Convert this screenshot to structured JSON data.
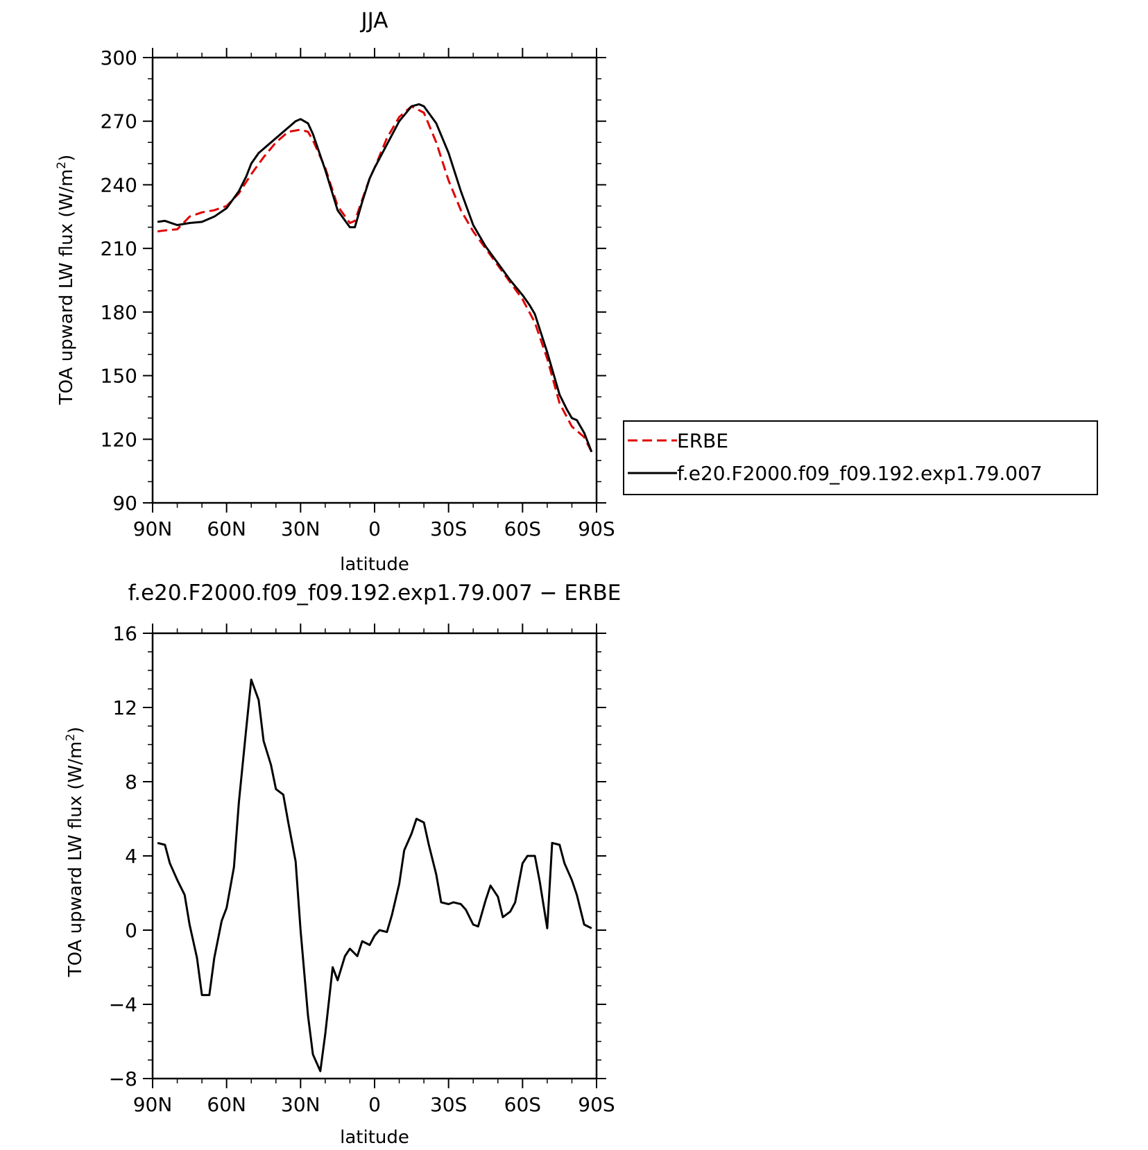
{
  "chart_data": [
    {
      "type": "line",
      "title": "JJA",
      "xlabel": "latitude",
      "ylabel": "TOA upward LW flux (W/m²)",
      "xlim": [
        90,
        -90
      ],
      "ylim": [
        90,
        300
      ],
      "xticks": [
        90,
        60,
        30,
        0,
        -30,
        -60,
        -90
      ],
      "xtick_labels": [
        "90N",
        "60N",
        "30N",
        "0",
        "30S",
        "60S",
        "90S"
      ],
      "yticks": [
        90,
        120,
        150,
        180,
        210,
        240,
        270,
        300
      ],
      "ytick_labels": [
        "90",
        "120",
        "150",
        "180",
        "210",
        "240",
        "270",
        "300"
      ],
      "grid": false,
      "legend": "right",
      "series": [
        {
          "name": "ERBE",
          "color": "#e00000",
          "style": "dashed",
          "x": [
            88,
            85,
            80,
            75,
            70,
            65,
            60,
            55,
            50,
            45,
            40,
            35,
            30,
            27,
            25,
            20,
            15,
            10,
            8,
            5,
            2,
            0,
            -5,
            -10,
            -15,
            -20,
            -25,
            -30,
            -35,
            -40,
            -45,
            -50,
            -55,
            -60,
            -65,
            -70,
            -75,
            -80,
            -85,
            -88
          ],
          "values": [
            218,
            218.5,
            219,
            225,
            227,
            228,
            230,
            236,
            245,
            253,
            260,
            265,
            266,
            265,
            261,
            248,
            230,
            222,
            223,
            233,
            243,
            248,
            262,
            272,
            277,
            274,
            260,
            242,
            228,
            218,
            210,
            202,
            194,
            186,
            175,
            158,
            137,
            126,
            121,
            114
          ]
        },
        {
          "name": "f.e20.F2000.f09_f09.192.exp1.79.007",
          "color": "#000000",
          "style": "solid",
          "x": [
            88,
            85,
            80,
            75,
            70,
            65,
            60,
            55,
            52,
            50,
            47,
            45,
            40,
            35,
            32,
            30,
            27,
            25,
            20,
            15,
            10,
            8,
            5,
            2,
            0,
            -5,
            -10,
            -15,
            -18,
            -20,
            -25,
            -30,
            -35,
            -40,
            -45,
            -50,
            -55,
            -60,
            -63,
            -65,
            -70,
            -75,
            -78,
            -80,
            -82,
            -85,
            -88
          ],
          "values": [
            222.5,
            223,
            221,
            222,
            222.5,
            225,
            229,
            237,
            244,
            250,
            255,
            257,
            262,
            267,
            270,
            271,
            269,
            264,
            247,
            228,
            220,
            220,
            232,
            243,
            248,
            259,
            270,
            277,
            278,
            277,
            269,
            255,
            237,
            221,
            211,
            203,
            195,
            188,
            183,
            179,
            161,
            141,
            134,
            130,
            129,
            123,
            114
          ]
        }
      ]
    },
    {
      "type": "line",
      "title": "f.e20.F2000.f09_f09.192.exp1.79.007 − ERBE",
      "xlabel": "latitude",
      "ylabel": "TOA upward LW flux (W/m²)",
      "xlim": [
        90,
        -90
      ],
      "ylim": [
        -8,
        16
      ],
      "xticks": [
        90,
        60,
        30,
        0,
        -30,
        -60,
        -90
      ],
      "xtick_labels": [
        "90N",
        "60N",
        "30N",
        "0",
        "30S",
        "60S",
        "90S"
      ],
      "yticks": [
        -8,
        -4,
        0,
        4,
        8,
        12,
        16
      ],
      "ytick_labels": [
        "−8",
        "−4",
        "0",
        "4",
        "8",
        "12",
        "16"
      ],
      "grid": false,
      "series": [
        {
          "color": "#000000",
          "style": "solid",
          "x": [
            88,
            85,
            83,
            80,
            77,
            75,
            72,
            70,
            67,
            65,
            62,
            60,
            57,
            55,
            52,
            50,
            47,
            45,
            42,
            40,
            37,
            35,
            32,
            30,
            27,
            25,
            22,
            20,
            17,
            15,
            12,
            10,
            7,
            5,
            2,
            0,
            -2,
            -5,
            -7,
            -10,
            -12,
            -15,
            -17,
            -20,
            -22,
            -25,
            -27,
            -30,
            -32,
            -35,
            -37,
            -40,
            -42,
            -45,
            -47,
            -50,
            -52,
            -55,
            -57,
            -60,
            -62,
            -65,
            -67,
            -70,
            -72,
            -75,
            -77,
            -80,
            -82,
            -85,
            -88
          ],
          "values": [
            4.7,
            4.6,
            3.6,
            2.7,
            1.9,
            0.3,
            -1.5,
            -3.5,
            -3.5,
            -1.5,
            0.5,
            1.2,
            3.4,
            6.9,
            10.9,
            13.5,
            12.4,
            10.2,
            8.9,
            7.6,
            7.3,
            5.8,
            3.7,
            0.0,
            -4.6,
            -6.7,
            -7.6,
            -5.6,
            -2.0,
            -2.7,
            -1.4,
            -1.0,
            -1.4,
            -0.6,
            -0.8,
            -0.3,
            0.0,
            -0.1,
            0.8,
            2.5,
            4.3,
            5.2,
            6.0,
            5.8,
            4.6,
            3.0,
            1.5,
            1.4,
            1.5,
            1.4,
            1.1,
            0.3,
            0.2,
            1.6,
            2.4,
            1.8,
            0.7,
            1.0,
            1.5,
            3.6,
            4.0,
            4.0,
            2.6,
            0.1,
            4.7,
            4.6,
            3.6,
            2.7,
            1.9,
            0.3,
            0.1
          ]
        }
      ]
    }
  ]
}
